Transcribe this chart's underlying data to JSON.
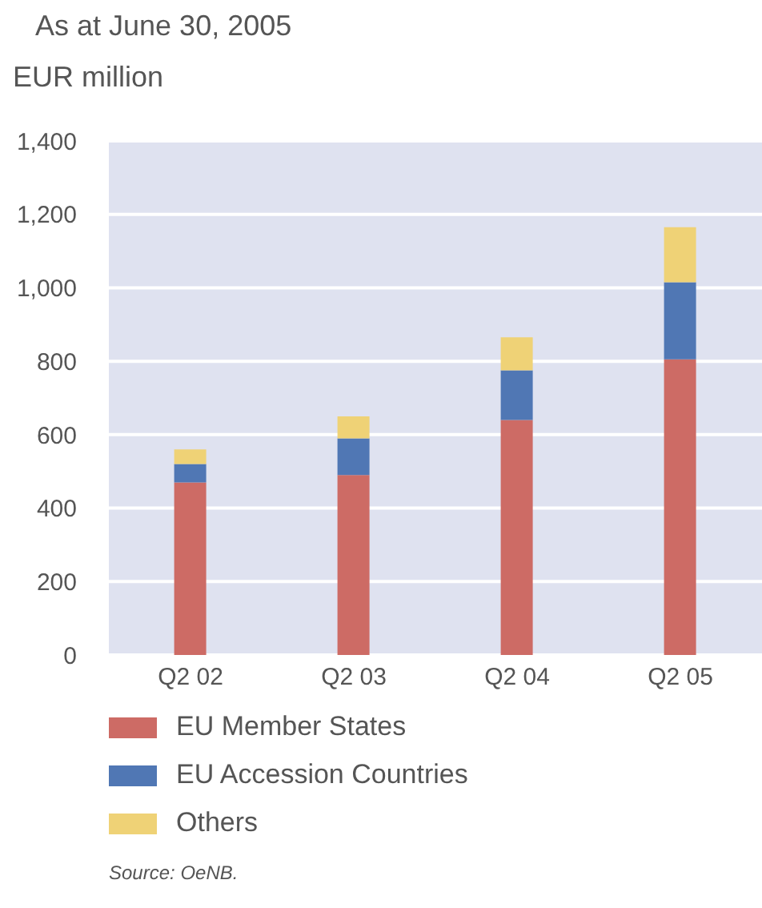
{
  "chart_data": {
    "type": "bar",
    "title": "As at June 30, 2005",
    "ylabel": "EUR million",
    "categories": [
      "Q2 02",
      "Q2 03",
      "Q2 04",
      "Q2 05"
    ],
    "series": [
      {
        "name": "EU Member States",
        "color": "#cd6b65",
        "values": [
          470,
          490,
          640,
          805
        ]
      },
      {
        "name": "EU Accession Countries",
        "color": "#5077b4",
        "values": [
          50,
          100,
          135,
          210
        ]
      },
      {
        "name": "Others",
        "color": "#efd276",
        "values": [
          40,
          60,
          90,
          150
        ]
      }
    ],
    "stacked": true,
    "ylim": [
      0,
      1400
    ],
    "yticks": [
      0,
      200,
      400,
      600,
      800,
      {
        "value": 1000,
        "label": "1,000"
      },
      {
        "value": 1200,
        "label": "1,200"
      },
      {
        "value": 1400,
        "label": "1,400"
      }
    ],
    "grid": "y",
    "legend": "bottom",
    "annotations": [
      "Source: OeNB."
    ]
  }
}
